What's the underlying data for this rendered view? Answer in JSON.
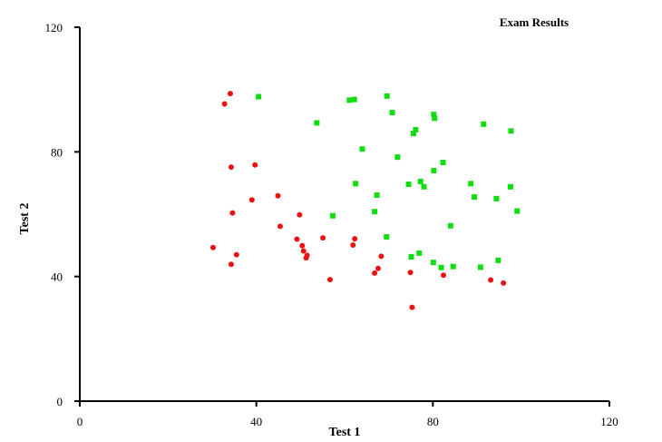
{
  "chart_data": {
    "type": "scatter",
    "title": "Exam Results",
    "xlabel": "Test 1",
    "ylabel": "Test 2",
    "xlim": [
      0,
      120
    ],
    "ylim": [
      0,
      120
    ],
    "xticks": [
      "0",
      "40",
      "80",
      "120"
    ],
    "yticks": [
      "0",
      "40",
      "80",
      "120"
    ],
    "grid": false,
    "series": [
      {
        "marker": "circle",
        "color": "#ee1111",
        "points": [
          [
            30.2,
            49.3
          ],
          [
            32.8,
            95.4
          ],
          [
            34.1,
            98.7
          ],
          [
            34.3,
            75.1
          ],
          [
            34.3,
            43.9
          ],
          [
            34.6,
            60.4
          ],
          [
            35.5,
            47.0
          ],
          [
            39.0,
            64.6
          ],
          [
            39.7,
            75.8
          ],
          [
            44.9,
            65.9
          ],
          [
            45.4,
            56.1
          ],
          [
            49.2,
            52.0
          ],
          [
            49.8,
            59.8
          ],
          [
            50.4,
            49.9
          ],
          [
            50.7,
            48.2
          ],
          [
            51.3,
            46.0
          ],
          [
            51.5,
            46.8
          ],
          [
            55.1,
            52.4
          ],
          [
            56.7,
            39.0
          ],
          [
            61.9,
            50.1
          ],
          [
            62.3,
            52.1
          ],
          [
            66.8,
            41.1
          ],
          [
            67.6,
            42.6
          ],
          [
            68.3,
            46.5
          ],
          [
            74.9,
            41.3
          ],
          [
            75.3,
            30.1
          ],
          [
            82.4,
            40.4
          ],
          [
            93.1,
            38.9
          ],
          [
            96.0,
            37.9
          ]
        ]
      },
      {
        "marker": "square",
        "color": "#11dd11",
        "points": [
          [
            40.5,
            97.7
          ],
          [
            53.7,
            89.3
          ],
          [
            57.3,
            59.5
          ],
          [
            61.1,
            96.6
          ],
          [
            62.2,
            96.8
          ],
          [
            62.5,
            69.8
          ],
          [
            64.0,
            80.9
          ],
          [
            66.8,
            60.8
          ],
          [
            67.3,
            66.1
          ],
          [
            69.5,
            52.7
          ],
          [
            69.6,
            97.9
          ],
          [
            70.8,
            92.6
          ],
          [
            72.0,
            78.3
          ],
          [
            74.5,
            69.6
          ],
          [
            75.1,
            46.3
          ],
          [
            75.6,
            85.9
          ],
          [
            76.1,
            87.1
          ],
          [
            76.9,
            47.5
          ],
          [
            77.2,
            70.5
          ],
          [
            78.0,
            68.8
          ],
          [
            80.1,
            44.5
          ],
          [
            80.2,
            74.0
          ],
          [
            80.2,
            92.0
          ],
          [
            80.4,
            90.8
          ],
          [
            81.9,
            42.9
          ],
          [
            82.3,
            76.6
          ],
          [
            84.0,
            56.3
          ],
          [
            84.6,
            43.2
          ],
          [
            88.6,
            69.8
          ],
          [
            89.4,
            65.5
          ],
          [
            90.8,
            43.0
          ],
          [
            91.5,
            88.9
          ],
          [
            94.4,
            65.0
          ],
          [
            94.8,
            45.2
          ],
          [
            97.6,
            68.8
          ],
          [
            97.7,
            86.7
          ],
          [
            99.1,
            61.0
          ]
        ]
      }
    ]
  }
}
